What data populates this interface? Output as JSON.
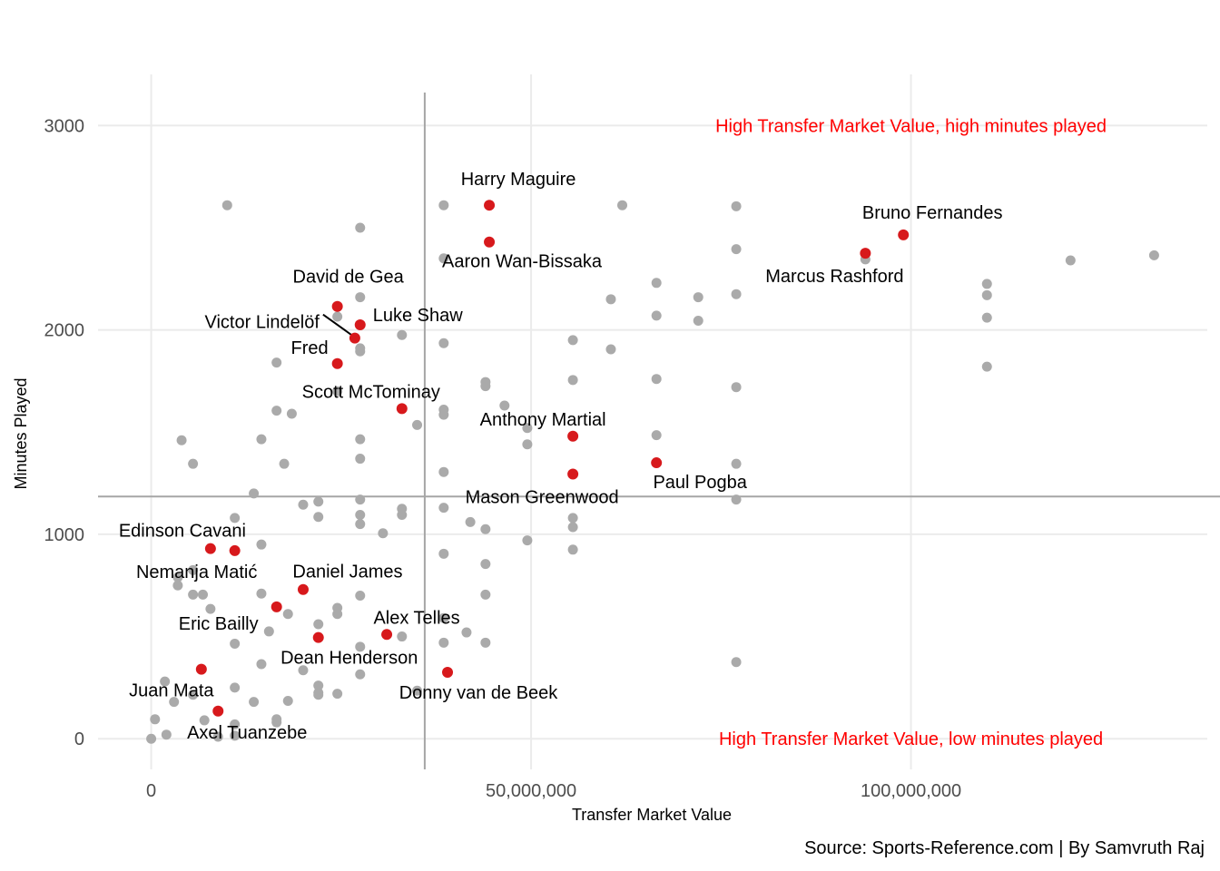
{
  "chart_data": {
    "type": "scatter",
    "xlabel": "Transfer Market Value",
    "ylabel": "Minutes Played",
    "caption": "Source: Sports-Reference.com | By Samvruth Raj",
    "xlim": [
      -7000000,
      139000000
    ],
    "ylim": [
      -150,
      3250
    ],
    "x_ticks": [
      0,
      50000000,
      100000000
    ],
    "x_tick_labels": [
      "0",
      "50,000,000",
      "100,000,000"
    ],
    "y_ticks": [
      0,
      1000,
      2000,
      3000
    ],
    "y_tick_labels": [
      "0",
      "1000",
      "2000",
      "3000"
    ],
    "grid": true,
    "reference_lines": {
      "x": 36000000,
      "y": 1185
    },
    "colors": {
      "background": "#ffffff",
      "grid": "#ebebeb",
      "other": "#aaaaaa",
      "highlight": "#d7191c",
      "annotation": "#ff0000",
      "refline": "#a6a6a6"
    },
    "annotations": [
      {
        "text": "High Transfer Market Value, high minutes played",
        "x": 100000000,
        "y": 3000
      },
      {
        "text": "High Transfer Market Value, low minutes played",
        "x": 100000000,
        "y": 0
      }
    ],
    "highlighted_players": [
      {
        "name": "Harry Maguire",
        "x": 44500000,
        "y": 2610
      },
      {
        "name": "Aaron Wan-Bissaka",
        "x": 44500000,
        "y": 2430
      },
      {
        "name": "Bruno Fernandes",
        "x": 99000000,
        "y": 2465
      },
      {
        "name": "Marcus Rashford",
        "x": 94000000,
        "y": 2375
      },
      {
        "name": "David de Gea",
        "x": 24500000,
        "y": 2115
      },
      {
        "name": "Luke Shaw",
        "x": 27500000,
        "y": 2025
      },
      {
        "name": "Victor Lindelöf",
        "x": 26800000,
        "y": 1960
      },
      {
        "name": "Fred",
        "x": 24500000,
        "y": 1835
      },
      {
        "name": "Scott McTominay",
        "x": 33000000,
        "y": 1615
      },
      {
        "name": "Anthony Martial",
        "x": 55500000,
        "y": 1480
      },
      {
        "name": "Paul Pogba",
        "x": 66500000,
        "y": 1350
      },
      {
        "name": "Mason Greenwood",
        "x": 55500000,
        "y": 1295
      },
      {
        "name": "Edinson Cavani",
        "x": 7800000,
        "y": 930
      },
      {
        "name": "Nemanja Matić",
        "x": 11000000,
        "y": 920
      },
      {
        "name": "Daniel James",
        "x": 20000000,
        "y": 730
      },
      {
        "name": "Eric Bailly",
        "x": 16500000,
        "y": 645
      },
      {
        "name": "Alex Telles",
        "x": 31000000,
        "y": 510
      },
      {
        "name": "Dean Henderson",
        "x": 22000000,
        "y": 495
      },
      {
        "name": "Juan Mata",
        "x": 6600000,
        "y": 340
      },
      {
        "name": "Donny van de Beek",
        "x": 39000000,
        "y": 325
      },
      {
        "name": "Axel Tuanzebe",
        "x": 8800000,
        "y": 135
      }
    ],
    "other_players": [
      [
        10000000,
        2610
      ],
      [
        27500000,
        2500
      ],
      [
        38500000,
        2610
      ],
      [
        62000000,
        2610
      ],
      [
        77000000,
        2605
      ],
      [
        77000000,
        2395
      ],
      [
        38500000,
        2350
      ],
      [
        27500000,
        2160
      ],
      [
        24500000,
        2065
      ],
      [
        27500000,
        1910
      ],
      [
        27500000,
        1895
      ],
      [
        33000000,
        1975
      ],
      [
        38500000,
        1935
      ],
      [
        66500000,
        2230
      ],
      [
        72000000,
        2160
      ],
      [
        77000000,
        2175
      ],
      [
        60500000,
        2150
      ],
      [
        66500000,
        2070
      ],
      [
        72000000,
        2045
      ],
      [
        94000000,
        2345
      ],
      [
        110000000,
        2225
      ],
      [
        110000000,
        2170
      ],
      [
        110000000,
        2060
      ],
      [
        110000000,
        1820
      ],
      [
        121000000,
        2340
      ],
      [
        132000000,
        2365
      ],
      [
        55500000,
        1950
      ],
      [
        60500000,
        1905
      ],
      [
        16500000,
        1840
      ],
      [
        44000000,
        1745
      ],
      [
        44000000,
        1725
      ],
      [
        55500000,
        1755
      ],
      [
        66500000,
        1760
      ],
      [
        77000000,
        1720
      ],
      [
        24500000,
        1700
      ],
      [
        16500000,
        1605
      ],
      [
        38500000,
        1610
      ],
      [
        38500000,
        1585
      ],
      [
        46500000,
        1630
      ],
      [
        18500000,
        1590
      ],
      [
        35000000,
        1535
      ],
      [
        49500000,
        1520
      ],
      [
        4000000,
        1460
      ],
      [
        14500000,
        1465
      ],
      [
        27500000,
        1465
      ],
      [
        49500000,
        1440
      ],
      [
        66500000,
        1485
      ],
      [
        5500000,
        1345
      ],
      [
        17500000,
        1345
      ],
      [
        27500000,
        1370
      ],
      [
        38500000,
        1305
      ],
      [
        77000000,
        1345
      ],
      [
        13500000,
        1200
      ],
      [
        20000000,
        1145
      ],
      [
        22000000,
        1160
      ],
      [
        27500000,
        1170
      ],
      [
        33000000,
        1125
      ],
      [
        38500000,
        1130
      ],
      [
        77000000,
        1170
      ],
      [
        11000000,
        1080
      ],
      [
        22000000,
        1085
      ],
      [
        27500000,
        1095
      ],
      [
        33000000,
        1095
      ],
      [
        27500000,
        1050
      ],
      [
        30500000,
        1005
      ],
      [
        42000000,
        1060
      ],
      [
        44000000,
        1025
      ],
      [
        55500000,
        1080
      ],
      [
        55500000,
        1035
      ],
      [
        49500000,
        970
      ],
      [
        55500000,
        925
      ],
      [
        14500000,
        950
      ],
      [
        38500000,
        905
      ],
      [
        44000000,
        855
      ],
      [
        5500000,
        825
      ],
      [
        3500000,
        790
      ],
      [
        3500000,
        750
      ],
      [
        5500000,
        705
      ],
      [
        6800000,
        705
      ],
      [
        14500000,
        710
      ],
      [
        27500000,
        700
      ],
      [
        44000000,
        705
      ],
      [
        7800000,
        635
      ],
      [
        18000000,
        610
      ],
      [
        24500000,
        640
      ],
      [
        24500000,
        610
      ],
      [
        38500000,
        590
      ],
      [
        15500000,
        525
      ],
      [
        22000000,
        560
      ],
      [
        33000000,
        500
      ],
      [
        41500000,
        520
      ],
      [
        11000000,
        465
      ],
      [
        27500000,
        450
      ],
      [
        38500000,
        470
      ],
      [
        44000000,
        470
      ],
      [
        14500000,
        365
      ],
      [
        20000000,
        335
      ],
      [
        27500000,
        315
      ],
      [
        1800000,
        280
      ],
      [
        3000000,
        180
      ],
      [
        5500000,
        215
      ],
      [
        11000000,
        250
      ],
      [
        13500000,
        180
      ],
      [
        18000000,
        185
      ],
      [
        22000000,
        260
      ],
      [
        22000000,
        225
      ],
      [
        22000000,
        215
      ],
      [
        24500000,
        220
      ],
      [
        35000000,
        235
      ],
      [
        77000000,
        375
      ],
      [
        500000,
        95
      ],
      [
        2000000,
        20
      ],
      [
        7000000,
        90
      ],
      [
        11000000,
        70
      ],
      [
        11000000,
        15
      ],
      [
        8800000,
        10
      ],
      [
        16500000,
        95
      ],
      [
        16500000,
        80
      ],
      [
        0,
        0
      ]
    ]
  }
}
